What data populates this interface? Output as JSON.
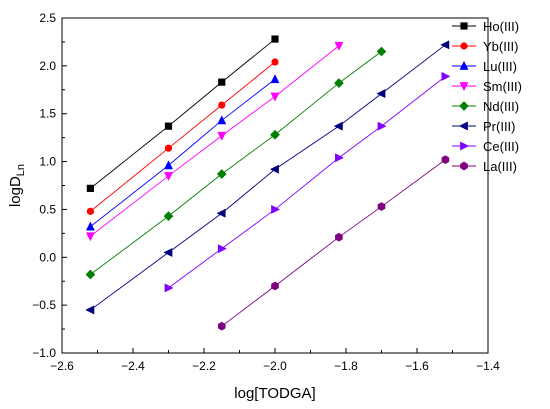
{
  "chart_data": {
    "type": "scatter",
    "xlabel": "log[TODGA]",
    "ylabel_main": "logD",
    "ylabel_sub": "Ln",
    "xlim": [
      -2.6,
      -1.4
    ],
    "ylim": [
      -1.0,
      2.5
    ],
    "x_ticks": [
      -2.6,
      -2.4,
      -2.2,
      -2.0,
      -1.8,
      -1.6,
      -1.4
    ],
    "x_tick_labels": [
      "−2.6",
      "−2.4",
      "−2.2",
      "−2.0",
      "−1.8",
      "−1.6",
      "−1.4"
    ],
    "y_ticks": [
      -1.0,
      -0.5,
      0.0,
      0.5,
      1.0,
      1.5,
      2.0,
      2.5
    ],
    "y_tick_labels": [
      "−1.0",
      "−0.5",
      "0.0",
      "0.5",
      "1.0",
      "1.5",
      "2.0",
      "2.5"
    ],
    "grid": false,
    "legend_position": "top-right",
    "series": [
      {
        "name": "Ho(III)",
        "color": "#000000",
        "marker": "square",
        "x": [
          -2.52,
          -2.3,
          -2.15,
          -2.0
        ],
        "y": [
          0.72,
          1.37,
          1.83,
          2.28
        ]
      },
      {
        "name": "Yb(III)",
        "color": "#ff0000",
        "marker": "circle",
        "x": [
          -2.52,
          -2.3,
          -2.15,
          -2.0
        ],
        "y": [
          0.48,
          1.14,
          1.59,
          2.04
        ]
      },
      {
        "name": "Lu(III)",
        "color": "#0000ff",
        "marker": "triangle-up",
        "x": [
          -2.52,
          -2.3,
          -2.15,
          -2.0
        ],
        "y": [
          0.32,
          0.96,
          1.43,
          1.86
        ]
      },
      {
        "name": "Sm(III)",
        "color": "#ff00ff",
        "marker": "triangle-down",
        "x": [
          -2.52,
          -2.3,
          -2.15,
          -2.0,
          -1.82
        ],
        "y": [
          0.22,
          0.85,
          1.27,
          1.68,
          2.21
        ]
      },
      {
        "name": "Nd(III)",
        "color": "#008000",
        "marker": "diamond",
        "x": [
          -2.52,
          -2.3,
          -2.15,
          -2.0,
          -1.82,
          -1.7
        ],
        "y": [
          -0.18,
          0.43,
          0.87,
          1.28,
          1.82,
          2.15
        ]
      },
      {
        "name": "Pr(III)",
        "color": "#000080",
        "marker": "triangle-left",
        "x": [
          -2.52,
          -2.3,
          -2.15,
          -2.0,
          -1.82,
          -1.7,
          -1.52
        ],
        "y": [
          -0.55,
          0.05,
          0.46,
          0.92,
          1.37,
          1.71,
          2.22
        ]
      },
      {
        "name": "Ce(III)",
        "color": "#8000ff",
        "marker": "triangle-right",
        "x": [
          -2.3,
          -2.15,
          -2.0,
          -1.82,
          -1.7,
          -1.52
        ],
        "y": [
          -0.32,
          0.09,
          0.5,
          1.04,
          1.37,
          1.89
        ]
      },
      {
        "name": "La(III)",
        "color": "#800080",
        "marker": "hexagon",
        "x": [
          -2.15,
          -2.0,
          -1.82,
          -1.7,
          -1.52
        ],
        "y": [
          -0.72,
          -0.3,
          0.21,
          0.53,
          1.02
        ]
      }
    ]
  }
}
